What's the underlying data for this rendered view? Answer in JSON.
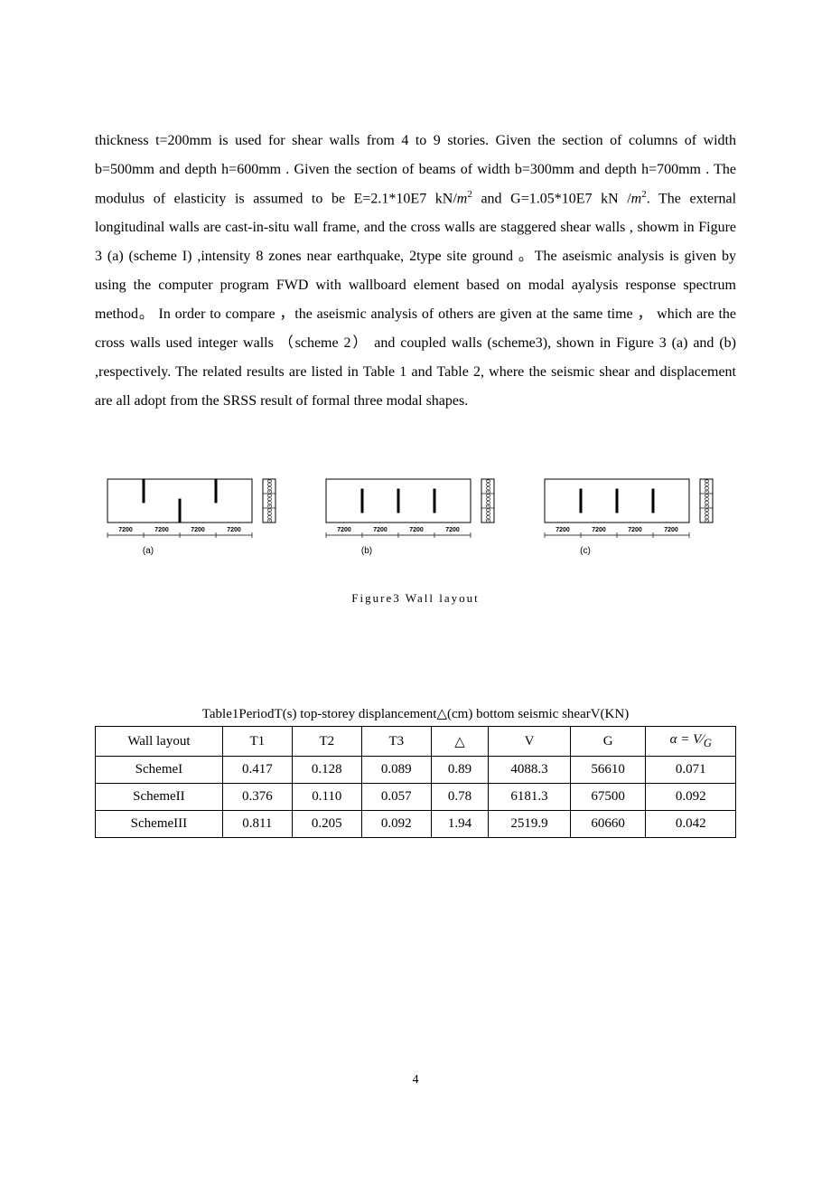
{
  "paragraph": {
    "text": "thickness t=200mm is used for shear walls from 4 to 9 stories. Given the section of columns of width b=500mm and depth h=600mm . Given the section of beams of width b=300mm and depth h=700mm . The modulus of elasticity is assumed to be E=2.1*10E7 kN/__M2__ and G=1.05*10E7 kN /__M2__. The external longitudinal walls are cast-in-situ wall frame, and the cross walls are staggered shear walls , showm in Figure 3 (a) (scheme I) ,intensity 8 zones near earthquake, 2type site ground 。The aseismic analysis is given by using the computer program FWD with wallboard element based on modal ayalysis response spectrum method。   In order to compare ，the aseismic analysis of others are given at the same time ，  which are the cross walls used integer walls  （scheme 2） and coupled walls (scheme3), shown in Figure 3 (a) and (b) ,respectively. The related results are listed in Table 1 and Table 2, where the seismic shear and displacement are all adopt from the SRSS result of formal three modal shapes."
  },
  "figure": {
    "caption": "Figure3  Wall  layout",
    "panels": [
      {
        "label": "(a)",
        "bays": [
          "7200",
          "7200",
          "7200",
          "7200"
        ],
        "side": [
          "3000",
          "3000",
          "3000"
        ],
        "stagger": "alt"
      },
      {
        "label": "(b)",
        "bays": [
          "7200",
          "7200",
          "7200",
          "7200"
        ],
        "side": [
          "3000",
          "3000",
          "3000"
        ],
        "stagger": "mid"
      },
      {
        "label": "(c)",
        "bays": [
          "7200",
          "7200",
          "7200",
          "7200"
        ],
        "side": [
          "3000",
          "3000",
          "3000"
        ],
        "stagger": "mid"
      }
    ],
    "style": {
      "stroke": "#000000",
      "bg": "#ffffff",
      "dim_font": 7,
      "label_font": 10
    }
  },
  "table": {
    "title": "Table1PeriodT(s) top-storey displancement△(cm) bottom seismic shearV(KN)",
    "headers": [
      "Wall   layout",
      "T1",
      "T2",
      "T3",
      "△",
      "V",
      "G",
      "α = V⁄G"
    ],
    "rows": [
      [
        "SchemeI",
        "0.417",
        "0.128",
        "0.089",
        "0.89",
        "4088.3",
        "56610",
        "0.071"
      ],
      [
        "SchemeII",
        "0.376",
        "0.110",
        "0.057",
        "0.78",
        "6181.3",
        "67500",
        "0.092"
      ],
      [
        "SchemeIII",
        "0.811",
        "0.205",
        "0.092",
        "1.94",
        "2519.9",
        "60660",
        "0.042"
      ]
    ]
  },
  "pagenum": "4"
}
